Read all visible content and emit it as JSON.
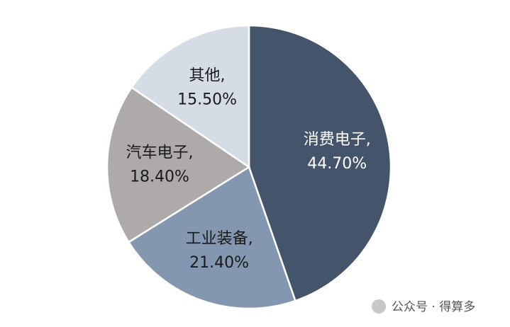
{
  "chart_data": {
    "type": "pie",
    "categories": [
      "消费电子,",
      "工业装备,",
      "汽车电子,",
      "其他,"
    ],
    "values": [
      44.7,
      21.4,
      18.4,
      15.5
    ],
    "value_labels": [
      "44.70%",
      "21.40%",
      "18.40%",
      "15.50%"
    ],
    "colors": [
      "#44546a",
      "#8497b0",
      "#aeaaaa",
      "#d6dce5"
    ],
    "label_colors": [
      "#ffffff",
      "#1a1a1a",
      "#1a1a1a",
      "#1a1a1a"
    ],
    "annotation": "公众号 · 得算多"
  }
}
